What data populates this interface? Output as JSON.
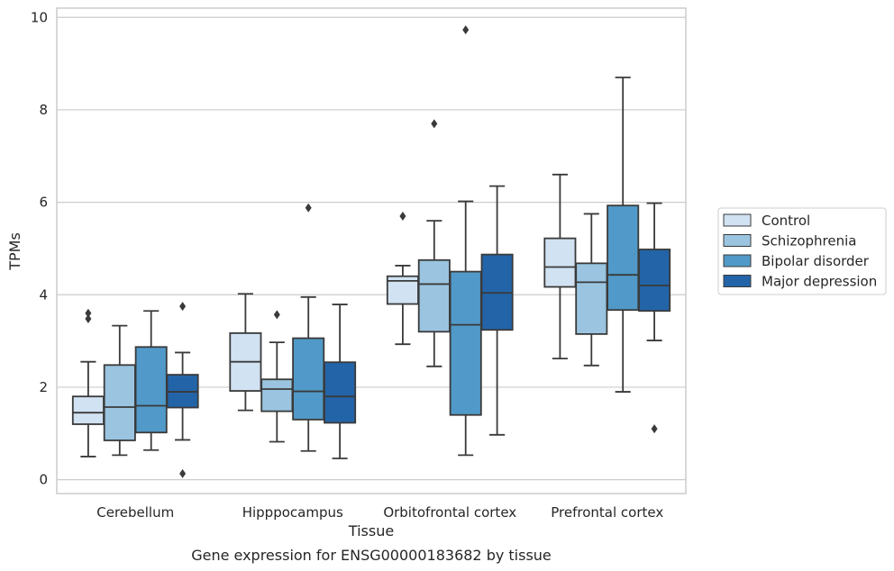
{
  "chart_data": {
    "type": "box",
    "caption": "Gene expression for ENSG00000183682 by tissue",
    "xlabel": "Tissue",
    "ylabel": "TPMs",
    "ylim": [
      -0.3,
      10.2
    ],
    "yticks": [
      0,
      2,
      4,
      6,
      8,
      10
    ],
    "grid": "horizontal",
    "legend_position": "right, outside plot",
    "categories": [
      "Cerebellum",
      "Hipppocampus",
      "Orbitofrontal cortex",
      "Prefrontal cortex"
    ],
    "series": [
      {
        "name": "Control",
        "color": "#d1e2f2",
        "boxes": [
          {
            "whisker_low": 0.5,
            "q1": 1.2,
            "median": 1.45,
            "q3": 1.8,
            "whisker_high": 2.55,
            "outliers": [
              3.48,
              3.6
            ]
          },
          {
            "whisker_low": 1.5,
            "q1": 1.92,
            "median": 2.55,
            "q3": 3.17,
            "whisker_high": 4.02,
            "outliers": []
          },
          {
            "whisker_low": 2.93,
            "q1": 3.8,
            "median": 4.3,
            "q3": 4.4,
            "whisker_high": 4.63,
            "outliers": [
              5.7
            ]
          },
          {
            "whisker_low": 2.62,
            "q1": 4.17,
            "median": 4.6,
            "q3": 5.22,
            "whisker_high": 6.6,
            "outliers": []
          }
        ]
      },
      {
        "name": "Schizophrenia",
        "color": "#9ac4df",
        "boxes": [
          {
            "whisker_low": 0.53,
            "q1": 0.85,
            "median": 1.57,
            "q3": 2.48,
            "whisker_high": 3.33,
            "outliers": []
          },
          {
            "whisker_low": 0.82,
            "q1": 1.48,
            "median": 1.96,
            "q3": 2.17,
            "whisker_high": 2.97,
            "outliers": [
              3.57
            ]
          },
          {
            "whisker_low": 2.45,
            "q1": 3.2,
            "median": 4.23,
            "q3": 4.75,
            "whisker_high": 5.6,
            "outliers": [
              7.7
            ]
          },
          {
            "whisker_low": 2.47,
            "q1": 3.15,
            "median": 4.27,
            "q3": 4.68,
            "whisker_high": 5.75,
            "outliers": []
          }
        ]
      },
      {
        "name": "Bipolar disorder",
        "color": "#5199c8",
        "boxes": [
          {
            "whisker_low": 0.64,
            "q1": 1.02,
            "median": 1.6,
            "q3": 2.87,
            "whisker_high": 3.65,
            "outliers": []
          },
          {
            "whisker_low": 0.62,
            "q1": 1.3,
            "median": 1.91,
            "q3": 3.06,
            "whisker_high": 3.95,
            "outliers": [
              5.88
            ]
          },
          {
            "whisker_low": 0.53,
            "q1": 1.4,
            "median": 3.35,
            "q3": 4.5,
            "whisker_high": 6.02,
            "outliers": [
              9.73
            ]
          },
          {
            "whisker_low": 1.9,
            "q1": 3.67,
            "median": 4.43,
            "q3": 5.93,
            "whisker_high": 8.7,
            "outliers": []
          }
        ]
      },
      {
        "name": "Major depression",
        "color": "#2364a8",
        "boxes": [
          {
            "whisker_low": 0.86,
            "q1": 1.56,
            "median": 1.9,
            "q3": 2.27,
            "whisker_high": 2.75,
            "outliers": [
              0.13,
              3.75
            ]
          },
          {
            "whisker_low": 0.46,
            "q1": 1.23,
            "median": 1.8,
            "q3": 2.54,
            "whisker_high": 3.79,
            "outliers": []
          },
          {
            "whisker_low": 0.97,
            "q1": 3.24,
            "median": 4.04,
            "q3": 4.87,
            "whisker_high": 6.35,
            "outliers": []
          },
          {
            "whisker_low": 3.01,
            "q1": 3.65,
            "median": 4.2,
            "q3": 4.98,
            "whisker_high": 5.98,
            "outliers": [
              1.1
            ]
          }
        ]
      }
    ]
  }
}
